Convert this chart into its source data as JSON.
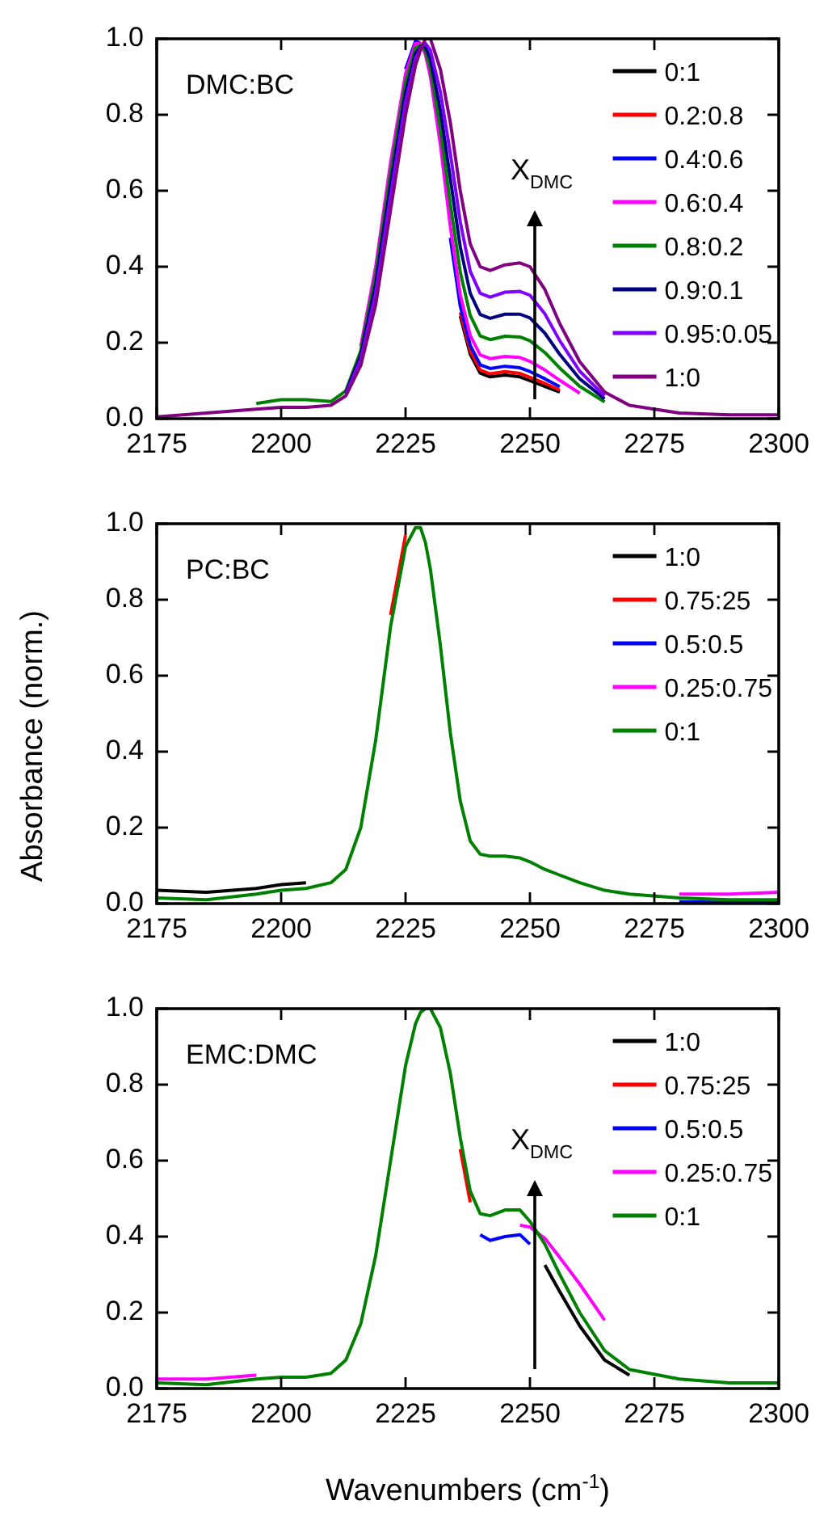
{
  "chart_data": [
    {
      "type": "line",
      "title": "DMC:BC",
      "legend": "top right",
      "xlim": [
        2175,
        2300
      ],
      "ylim": [
        0,
        1
      ],
      "xticks": [
        2175,
        2200,
        2225,
        2250,
        2275,
        2300
      ],
      "yticks": [
        {
          "value": 0,
          "label": "0.0"
        },
        {
          "value": 0.2,
          "label": "0.2"
        },
        {
          "value": 0.4,
          "label": "0.4"
        },
        {
          "value": 0.6,
          "label": "0.6"
        },
        {
          "value": 0.8,
          "label": "0.8"
        },
        {
          "value": 1,
          "label": "1.0"
        }
      ],
      "annotations": [
        "X$_{DMC}$"
      ],
      "x": [
        2175,
        2185,
        2195,
        2200,
        2205,
        2210,
        2213,
        2216,
        2219,
        2222,
        2225,
        2227,
        2228,
        2229,
        2230,
        2232,
        2234,
        2236,
        2238,
        2240,
        2242,
        2245,
        2248,
        2250,
        2253,
        2256,
        2260,
        2265,
        2270,
        2280,
        2290,
        2300
      ],
      "series": [
        {
          "name": "0:1",
          "color": "#000000",
          "values": [
            null,
            null,
            null,
            null,
            null,
            null,
            null,
            null,
            null,
            null,
            null,
            null,
            null,
            null,
            null,
            null,
            null,
            0.27,
            0.17,
            0.12,
            0.11,
            0.115,
            0.11,
            0.1,
            0.085,
            0.07,
            null,
            null,
            null,
            null,
            null,
            null
          ]
        },
        {
          "name": "0.2:0.8",
          "color": "#ff0000",
          "values": [
            null,
            null,
            null,
            null,
            null,
            null,
            null,
            null,
            null,
            null,
            null,
            null,
            null,
            null,
            null,
            null,
            null,
            0.28,
            0.179,
            0.128,
            0.118,
            0.124,
            0.119,
            0.109,
            0.093,
            0.075,
            null,
            null,
            null,
            null,
            null,
            null
          ]
        },
        {
          "name": "0.4:0.6",
          "color": "#0000ff",
          "values": [
            null,
            null,
            null,
            null,
            null,
            null,
            null,
            null,
            null,
            null,
            0.92,
            0.994,
            0.988,
            null,
            null,
            null,
            0.476,
            0.296,
            0.193,
            0.142,
            0.132,
            0.138,
            0.134,
            0.124,
            0.105,
            0.084,
            null,
            null,
            null,
            null,
            null,
            null
          ]
        },
        {
          "name": "0.6:0.4",
          "color": "#ff00ff",
          "values": [
            null,
            null,
            null,
            null,
            null,
            null,
            null,
            0.19,
            0.4,
            0.675,
            0.908,
            0.988,
            0.987,
            0.959,
            0.9,
            0.721,
            0.506,
            0.326,
            0.219,
            0.168,
            0.158,
            0.164,
            0.161,
            0.151,
            0.128,
            0.101,
            0.067,
            null,
            null,
            null,
            null,
            null
          ]
        },
        {
          "name": "0.8:0.2",
          "color": "#008000",
          "values": [
            null,
            null,
            0.04,
            0.05,
            0.05,
            0.045,
            0.073,
            0.179,
            0.378,
            0.648,
            0.885,
            0.976,
            0.983,
            0.968,
            0.922,
            0.764,
            0.566,
            0.386,
            0.272,
            0.218,
            0.208,
            0.217,
            0.215,
            0.205,
            0.174,
            0.133,
            0.085,
            0.044,
            null,
            null,
            null,
            null
          ]
        },
        {
          "name": "0.9:0.1",
          "color": "#000080",
          "values": [
            null,
            null,
            null,
            null,
            null,
            null,
            0.069,
            0.167,
            0.354,
            0.618,
            0.859,
            0.962,
            0.979,
            0.978,
            0.946,
            0.812,
            0.632,
            0.452,
            0.33,
            0.274,
            0.264,
            0.275,
            0.275,
            0.265,
            0.225,
            0.169,
            0.105,
            0.052,
            null,
            null,
            null,
            null
          ]
        },
        {
          "name": "0.95:0.05",
          "color": "#8000ff",
          "values": [
            null,
            null,
            null,
            null,
            null,
            null,
            0.065,
            0.155,
            0.33,
            0.588,
            0.833,
            0.948,
            0.975,
            0.988,
            0.97,
            0.86,
            0.698,
            0.518,
            0.388,
            0.33,
            0.32,
            0.333,
            0.335,
            0.325,
            0.276,
            0.205,
            0.125,
            0.06,
            null,
            null,
            null,
            null
          ]
        },
        {
          "name": "1:0",
          "color": "#800080",
          "values": [
            0.005,
            0.015,
            0.025,
            0.03,
            0.03,
            0.035,
            0.06,
            0.14,
            0.3,
            0.55,
            0.8,
            0.93,
            0.97,
            1.0,
            1.0,
            0.92,
            0.78,
            0.6,
            0.46,
            0.4,
            0.39,
            0.405,
            0.41,
            0.4,
            0.34,
            0.25,
            0.15,
            0.07,
            0.035,
            0.015,
            0.01,
            0.01
          ]
        }
      ]
    },
    {
      "type": "line",
      "title": "PC:BC",
      "ylabel": "Absorbance (norm.)",
      "legend": "top right",
      "xlim": [
        2175,
        2300
      ],
      "ylim": [
        0,
        1
      ],
      "xticks": [
        2175,
        2200,
        2225,
        2250,
        2275,
        2300
      ],
      "yticks": [
        {
          "value": 0,
          "label": "0.0"
        },
        {
          "value": 0.2,
          "label": "0.2"
        },
        {
          "value": 0.4,
          "label": "0.4"
        },
        {
          "value": 0.6,
          "label": "0.6"
        },
        {
          "value": 0.8,
          "label": "0.8"
        },
        {
          "value": 1,
          "label": "1.0"
        }
      ],
      "x": [
        2175,
        2185,
        2195,
        2200,
        2205,
        2210,
        2213,
        2216,
        2219,
        2222,
        2225,
        2227,
        2228,
        2229,
        2230,
        2232,
        2234,
        2236,
        2238,
        2240,
        2242,
        2245,
        2248,
        2250,
        2253,
        2256,
        2260,
        2265,
        2270,
        2280,
        2290,
        2300
      ],
      "series": [
        {
          "name": "1:0",
          "color": "#000000",
          "values": [
            0.035,
            0.03,
            0.04,
            0.05,
            0.055,
            null,
            null,
            null,
            null,
            null,
            null,
            null,
            null,
            null,
            null,
            null,
            null,
            null,
            null,
            null,
            null,
            null,
            null,
            null,
            null,
            null,
            null,
            null,
            null,
            null,
            null,
            null
          ]
        },
        {
          "name": "0.75:25",
          "color": "#ff0000",
          "values": [
            null,
            null,
            null,
            null,
            null,
            null,
            null,
            null,
            null,
            0.76,
            0.97,
            null,
            null,
            null,
            null,
            null,
            null,
            null,
            null,
            null,
            null,
            null,
            null,
            null,
            null,
            null,
            null,
            null,
            null,
            null,
            null,
            null
          ]
        },
        {
          "name": "0.5:0.5",
          "color": "#0000ff",
          "values": [
            null,
            null,
            null,
            null,
            null,
            null,
            null,
            null,
            null,
            null,
            null,
            null,
            null,
            null,
            null,
            null,
            null,
            null,
            null,
            null,
            null,
            null,
            null,
            null,
            null,
            null,
            null,
            null,
            null,
            0.005,
            0.003,
            0.003
          ]
        },
        {
          "name": "0.25:0.75",
          "color": "#ff00ff",
          "values": [
            null,
            null,
            null,
            null,
            null,
            null,
            null,
            null,
            null,
            null,
            null,
            null,
            null,
            null,
            null,
            null,
            null,
            null,
            null,
            null,
            null,
            null,
            null,
            null,
            null,
            null,
            null,
            null,
            null,
            0.025,
            0.025,
            0.03
          ]
        },
        {
          "name": "0:1",
          "color": "#008000",
          "values": [
            0.015,
            0.01,
            0.025,
            0.035,
            0.04,
            0.055,
            0.09,
            0.2,
            0.43,
            0.73,
            0.94,
            0.99,
            0.99,
            0.95,
            0.88,
            0.68,
            0.45,
            0.27,
            0.165,
            0.13,
            0.125,
            0.125,
            0.12,
            0.11,
            0.09,
            0.075,
            0.055,
            0.035,
            0.025,
            0.015,
            0.01,
            0.01
          ]
        }
      ]
    },
    {
      "type": "line",
      "title": "EMC:DMC",
      "xlabel": "Wavenumbers (cm$^{-1}$)",
      "legend": "top right",
      "xlim": [
        2175,
        2300
      ],
      "ylim": [
        0,
        1
      ],
      "xticks": [
        2175,
        2200,
        2225,
        2250,
        2275,
        2300
      ],
      "yticks": [
        {
          "value": 0,
          "label": "0.0"
        },
        {
          "value": 0.2,
          "label": "0.2"
        },
        {
          "value": 0.4,
          "label": "0.4"
        },
        {
          "value": 0.6,
          "label": "0.6"
        },
        {
          "value": 0.8,
          "label": "0.8"
        },
        {
          "value": 1,
          "label": "1.0"
        }
      ],
      "annotations": [
        "X$_{DMC}$"
      ],
      "x": [
        2175,
        2185,
        2195,
        2200,
        2205,
        2210,
        2213,
        2216,
        2219,
        2222,
        2225,
        2227,
        2228,
        2229,
        2230,
        2232,
        2234,
        2236,
        2238,
        2240,
        2242,
        2245,
        2248,
        2250,
        2253,
        2256,
        2260,
        2265,
        2270,
        2280,
        2290,
        2300
      ],
      "series": [
        {
          "name": "1:0",
          "color": "#000000",
          "values": [
            null,
            null,
            null,
            null,
            null,
            null,
            null,
            null,
            null,
            null,
            null,
            null,
            null,
            null,
            null,
            null,
            null,
            null,
            null,
            null,
            null,
            null,
            null,
            null,
            0.325,
            0.255,
            0.165,
            0.075,
            0.035,
            null,
            null,
            null
          ]
        },
        {
          "name": "0.75:25",
          "color": "#ff0000",
          "values": [
            null,
            null,
            null,
            null,
            null,
            null,
            null,
            null,
            null,
            null,
            null,
            null,
            null,
            null,
            null,
            null,
            null,
            0.63,
            0.49,
            null,
            null,
            null,
            null,
            null,
            null,
            null,
            null,
            null,
            null,
            null,
            null,
            null
          ]
        },
        {
          "name": "0.5:0.5",
          "color": "#0000ff",
          "values": [
            null,
            null,
            null,
            null,
            null,
            null,
            null,
            null,
            null,
            null,
            null,
            null,
            null,
            null,
            null,
            null,
            null,
            null,
            null,
            0.405,
            0.39,
            0.4,
            0.405,
            0.38,
            null,
            null,
            null,
            null,
            null,
            null,
            null,
            null
          ]
        },
        {
          "name": "0.25:0.75",
          "color": "#ff00ff",
          "values": [
            0.025,
            0.025,
            0.035,
            null,
            null,
            null,
            null,
            null,
            null,
            null,
            null,
            null,
            null,
            null,
            null,
            null,
            null,
            null,
            null,
            null,
            null,
            null,
            0.43,
            0.425,
            0.395,
            0.345,
            0.275,
            0.18,
            null,
            null,
            null,
            null
          ]
        },
        {
          "name": "0:1",
          "color": "#008000",
          "values": [
            0.015,
            0.01,
            0.025,
            0.03,
            0.03,
            0.04,
            0.075,
            0.17,
            0.35,
            0.6,
            0.85,
            0.96,
            0.99,
            1.0,
            1.0,
            0.95,
            0.83,
            0.66,
            0.52,
            0.46,
            0.455,
            0.47,
            0.47,
            0.44,
            0.38,
            0.3,
            0.2,
            0.1,
            0.05,
            0.025,
            0.015,
            0.015
          ]
        }
      ]
    }
  ]
}
